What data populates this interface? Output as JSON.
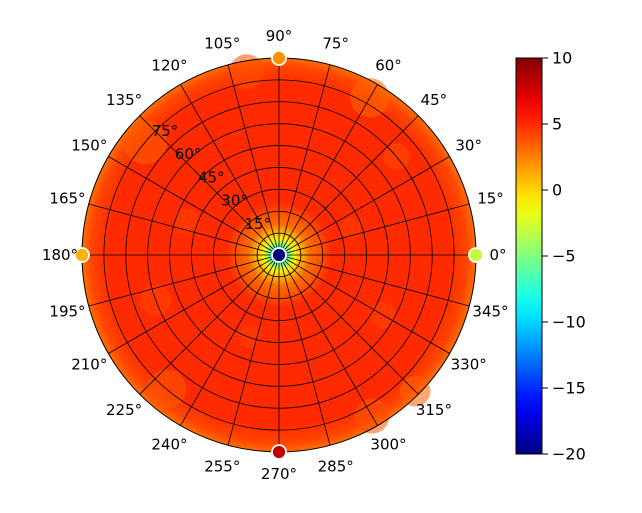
{
  "chart_data": {
    "type": "heatmap",
    "projection": "polar",
    "title": "",
    "azimuth_ticks": [
      {
        "deg": 0,
        "label": "0°"
      },
      {
        "deg": 15,
        "label": "15°"
      },
      {
        "deg": 30,
        "label": "30°"
      },
      {
        "deg": 45,
        "label": "45°"
      },
      {
        "deg": 60,
        "label": "60°"
      },
      {
        "deg": 75,
        "label": "75°"
      },
      {
        "deg": 90,
        "label": "90°"
      },
      {
        "deg": 105,
        "label": "105°"
      },
      {
        "deg": 120,
        "label": "120°"
      },
      {
        "deg": 135,
        "label": "135°"
      },
      {
        "deg": 150,
        "label": "150°"
      },
      {
        "deg": 165,
        "label": "165°"
      },
      {
        "deg": 180,
        "label": "180°"
      },
      {
        "deg": 195,
        "label": "195°"
      },
      {
        "deg": 210,
        "label": "210°"
      },
      {
        "deg": 225,
        "label": "225°"
      },
      {
        "deg": 240,
        "label": "240°"
      },
      {
        "deg": 255,
        "label": "255°"
      },
      {
        "deg": 270,
        "label": "270°"
      },
      {
        "deg": 285,
        "label": "285°"
      },
      {
        "deg": 300,
        "label": "300°"
      },
      {
        "deg": 315,
        "label": "315°"
      },
      {
        "deg": 330,
        "label": "330°"
      },
      {
        "deg": 345,
        "label": "345°"
      }
    ],
    "radial_ticks": [
      {
        "value": 15,
        "label": "15°"
      },
      {
        "value": 30,
        "label": "30°"
      },
      {
        "value": 45,
        "label": "45°"
      },
      {
        "value": 60,
        "label": "60°"
      },
      {
        "value": 75,
        "label": "75°"
      }
    ],
    "radial_range": [
      0,
      90
    ],
    "radial_label_angle_deg": 135,
    "colorbar": {
      "colormap": "jet",
      "range": [
        -20,
        10
      ],
      "ticks": [
        {
          "value": 10,
          "label": "10"
        },
        {
          "value": 5,
          "label": "5"
        },
        {
          "value": 0,
          "label": "0"
        },
        {
          "value": -5,
          "label": "−5"
        },
        {
          "value": -10,
          "label": "−10"
        },
        {
          "value": -15,
          "label": "−15"
        },
        {
          "value": -20,
          "label": "−20"
        }
      ]
    },
    "field": {
      "center_value": -20,
      "core_radius": 4,
      "transition_radius": 20,
      "plateau_value": 5,
      "edge_start_radius": 78,
      "edge_value": 3
    },
    "markers": [
      {
        "azimuth": 0,
        "radius": 90,
        "value": -3
      },
      {
        "azimuth": 90,
        "radius": 90,
        "value": 2
      },
      {
        "azimuth": 180,
        "radius": 90,
        "value": 1
      },
      {
        "azimuth": 270,
        "radius": 90,
        "value": 8
      },
      {
        "azimuth": 0,
        "radius": 0,
        "value": -20
      }
    ],
    "grid": true
  }
}
